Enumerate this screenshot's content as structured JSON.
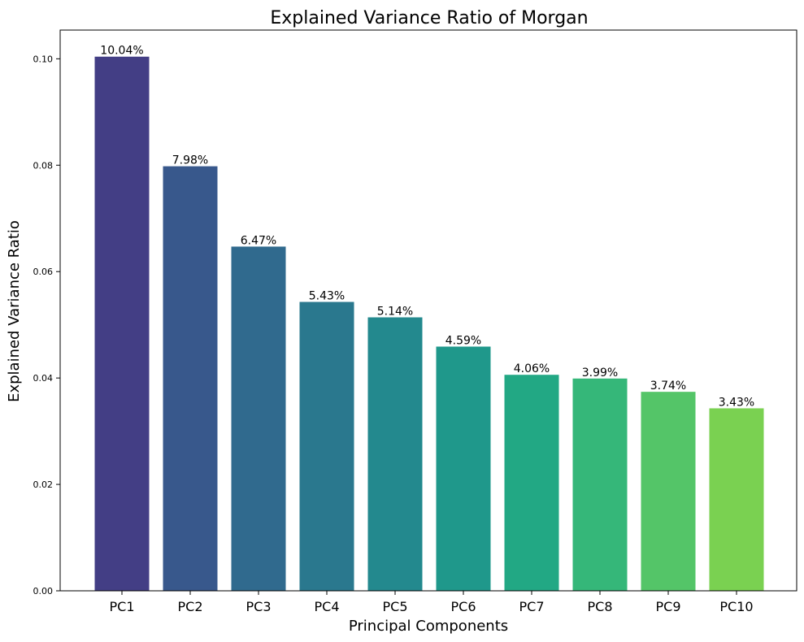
{
  "chart_data": {
    "type": "bar",
    "title": "Explained Variance Ratio of Morgan",
    "xlabel": "Principal Components",
    "ylabel": "Explained Variance Ratio",
    "categories": [
      "PC1",
      "PC2",
      "PC3",
      "PC4",
      "PC5",
      "PC6",
      "PC7",
      "PC8",
      "PC9",
      "PC10"
    ],
    "values": [
      0.1004,
      0.0798,
      0.0647,
      0.0543,
      0.0514,
      0.0459,
      0.0406,
      0.0399,
      0.0374,
      0.0343
    ],
    "data_labels": [
      "10.04%",
      "7.98%",
      "6.47%",
      "5.43%",
      "5.14%",
      "4.59%",
      "4.06%",
      "3.99%",
      "3.74%",
      "3.43%"
    ],
    "colors": [
      "#433E85",
      "#38588C",
      "#306A8E",
      "#2A788E",
      "#23898E",
      "#1F988B",
      "#22A884",
      "#35B779",
      "#54C568",
      "#7AD151"
    ],
    "yticks": [
      "0.00",
      "0.02",
      "0.04",
      "0.06",
      "0.08",
      "0.10"
    ],
    "ytick_values": [
      0,
      0.02,
      0.04,
      0.06,
      0.08,
      0.1
    ],
    "ylim": [
      0,
      0.1054
    ],
    "grid": false,
    "legend": "none"
  }
}
